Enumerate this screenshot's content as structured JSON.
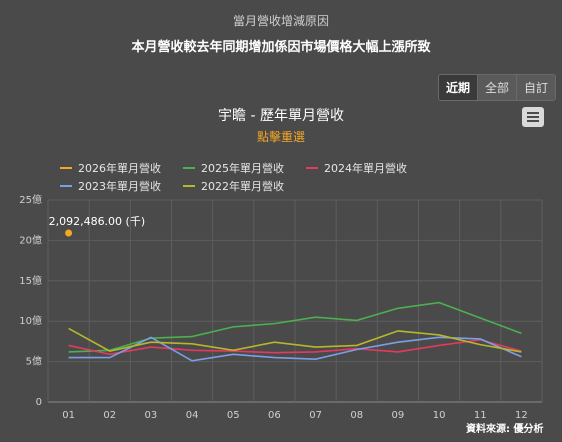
{
  "header": {
    "reason_label": "當月營收增減原因",
    "reason_text": "本月營收較去年同期增加係因市場價格大幅上漲所致"
  },
  "range_tabs": [
    {
      "label": "近期",
      "active": true
    },
    {
      "label": "全部",
      "active": false
    },
    {
      "label": "自訂",
      "active": false
    }
  ],
  "chart_data": {
    "type": "line",
    "title": "宇瞻 - 歷年單月營收",
    "subtitle": "點擊重選",
    "categories": [
      "01",
      "02",
      "03",
      "04",
      "05",
      "06",
      "07",
      "08",
      "09",
      "10",
      "11",
      "12"
    ],
    "ylim": [
      0,
      25
    ],
    "yticks": [
      0,
      5,
      10,
      15,
      20,
      25
    ],
    "ytick_labels": [
      "0",
      "5億",
      "10億",
      "15億",
      "20億",
      "25億"
    ],
    "grid": true,
    "legend_position": "top",
    "series": [
      {
        "name": "2026年單月營收",
        "color": "#f5a623",
        "values": [
          20.92,
          null,
          null,
          null,
          null,
          null,
          null,
          null,
          null,
          null,
          null,
          null
        ]
      },
      {
        "name": "2025年單月營收",
        "color": "#4caf50",
        "values": [
          6.2,
          6.4,
          7.9,
          8.1,
          9.3,
          9.7,
          10.5,
          10.1,
          11.6,
          12.3,
          10.4,
          8.5
        ]
      },
      {
        "name": "2024年單月營收",
        "color": "#e53960",
        "values": [
          7.0,
          5.9,
          6.8,
          6.4,
          6.3,
          6.1,
          6.2,
          6.6,
          6.2,
          7.0,
          7.7,
          6.3
        ]
      },
      {
        "name": "2023年單月營收",
        "color": "#7b9fe6",
        "values": [
          5.5,
          5.5,
          8.0,
          5.1,
          5.9,
          5.5,
          5.3,
          6.5,
          7.4,
          8.0,
          7.8,
          5.6
        ]
      },
      {
        "name": "2022年單月營收",
        "color": "#b5b82a",
        "values": [
          9.1,
          6.3,
          7.4,
          7.2,
          6.4,
          7.4,
          6.8,
          7.0,
          8.8,
          8.3,
          7.1,
          6.2
        ]
      }
    ],
    "annotation": {
      "series_index": 0,
      "point_index": 0,
      "label": "2,092,486.00 (千)"
    }
  },
  "source": "資料來源: 優分析"
}
